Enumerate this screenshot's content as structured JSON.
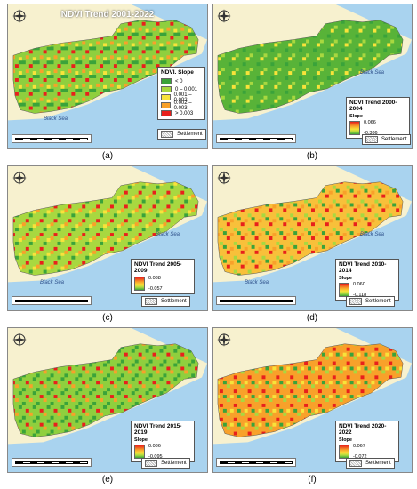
{
  "panels": [
    {
      "caption": "(a)",
      "map_title": "NDVI Trend 2001-2022",
      "sea_label": "Black Sea",
      "legend_title": "NDVI. Slope",
      "classes": [
        {
          "label": "< 0",
          "color": "#3aa33a"
        },
        {
          "label": "0 – 0.001",
          "color": "#a8d840"
        },
        {
          "label": "0.001 – 0.002",
          "color": "#f8e33a"
        },
        {
          "label": "0.002 – 0.003",
          "color": "#f8a12a"
        },
        {
          "label": "> 0.003",
          "color": "#e8201c"
        }
      ],
      "settlement": "Settlement"
    },
    {
      "caption": "(b)",
      "legend_title": "NDVI Trend 2000-2004",
      "slope_label": "Slope",
      "hi": "0.066",
      "lo": "-0.386",
      "sea_label": "Black Sea",
      "settlement": "Settlement"
    },
    {
      "caption": "(c)",
      "legend_title": "NDVI Trend 2005-2009",
      "slope_label": "Slope",
      "hi": "0.088",
      "lo": "-0.057",
      "sea_label": "Black Sea",
      "settlement": "Settlement"
    },
    {
      "caption": "(d)",
      "legend_title": "NDVI Trend 2010-2014",
      "slope_label": "Slope",
      "hi": "0.060",
      "lo": "-0.118",
      "sea_label": "Black Sea",
      "settlement": "Settlement"
    },
    {
      "caption": "(e)",
      "legend_title": "NDVI Trend 2015-2019",
      "slope_label": "Slope",
      "hi": "0.086",
      "lo": "-0.095",
      "sea_label": "Black Sea",
      "settlement": "Settlement"
    },
    {
      "caption": "(f)",
      "legend_title": "NDVI Trend 2020-2022",
      "slope_label": "Slope",
      "hi": "0.067",
      "lo": "-0.072",
      "sea_label": "Black Sea",
      "settlement": "Settlement"
    }
  ],
  "colors": {
    "land": "#f7f1cf",
    "sea": "#a9d3ef"
  }
}
